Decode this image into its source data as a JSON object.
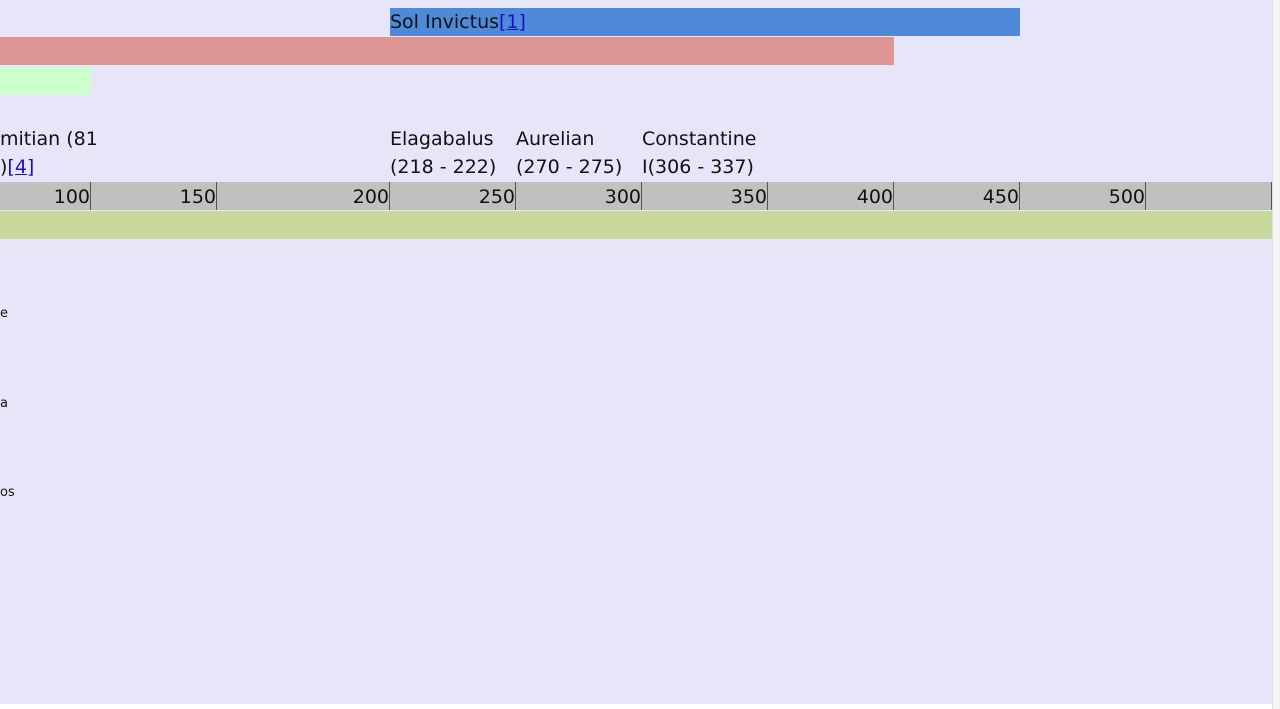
{
  "bars": {
    "sol_invictus": {
      "label": "Sol Invictus",
      "ref": "[1]"
    }
  },
  "emperors": [
    {
      "line1": "mitian (81",
      "line2": ")",
      "ref": "[4]"
    },
    {
      "line1": "Elagabalus",
      "line2": "(218 - 222)"
    },
    {
      "line1": "Aurelian",
      "line2": "(270 - 275)"
    },
    {
      "line1": "Constantine",
      "line2": "I(306 - 337)"
    }
  ],
  "ruler": [
    100,
    150,
    200,
    250,
    300,
    350,
    400,
    450,
    500
  ],
  "side_labels": [
    "e",
    "a",
    "os"
  ]
}
